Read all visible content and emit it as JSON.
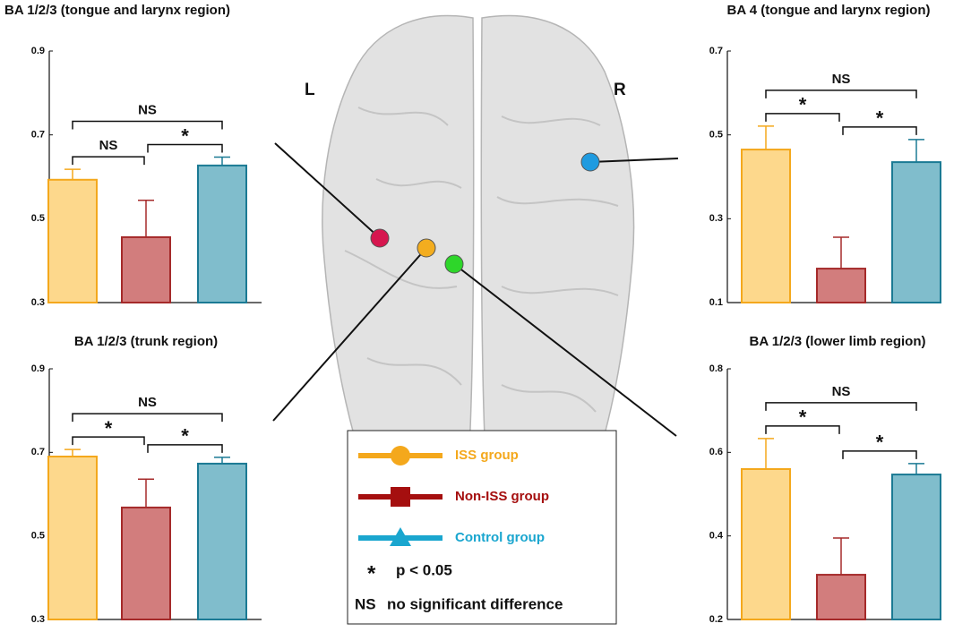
{
  "chart_data": [
    {
      "type": "bar",
      "title": "BA 1/2/3 (tongue and larynx region)",
      "categories": [
        null,
        null,
        null
      ],
      "values": [
        0.593,
        0.456,
        0.627
      ],
      "errors": [
        0.025,
        0.088,
        0.02
      ],
      "colors": [
        "#fdd88c",
        "#d27d7d",
        "#80bdcc"
      ],
      "edge_colors": [
        "#f4a81c",
        "#a52a2a",
        "#1b7a94"
      ],
      "ylim": [
        0.3,
        0.9
      ],
      "yticks": [
        0.3,
        0.5,
        0.7,
        0.9
      ],
      "comparisons": [
        {
          "pair": [
            0,
            1
          ],
          "label": "NS"
        },
        {
          "pair": [
            1,
            2
          ],
          "label": "*"
        },
        {
          "pair": [
            0,
            2
          ],
          "label": "NS"
        }
      ]
    },
    {
      "type": "bar",
      "title": "BA 4 (tongue and larynx region)",
      "categories": [
        null,
        null,
        null
      ],
      "values": [
        0.465,
        0.181,
        0.435
      ],
      "errors": [
        0.056,
        0.075,
        0.054
      ],
      "colors": [
        "#fdd88c",
        "#d27d7d",
        "#80bdcc"
      ],
      "edge_colors": [
        "#f4a81c",
        "#a52a2a",
        "#1b7a94"
      ],
      "ylim": [
        0.1,
        0.7
      ],
      "yticks": [
        0.1,
        0.3,
        0.5,
        0.7
      ],
      "comparisons": [
        {
          "pair": [
            0,
            1
          ],
          "label": "*"
        },
        {
          "pair": [
            1,
            2
          ],
          "label": "*"
        },
        {
          "pair": [
            0,
            2
          ],
          "label": "NS"
        }
      ]
    },
    {
      "type": "bar",
      "title": "BA 1/2/3 (trunk region)",
      "categories": [
        null,
        null,
        null
      ],
      "values": [
        0.69,
        0.568,
        0.673
      ],
      "errors": [
        0.017,
        0.068,
        0.015
      ],
      "colors": [
        "#fdd88c",
        "#d27d7d",
        "#80bdcc"
      ],
      "edge_colors": [
        "#f4a81c",
        "#a52a2a",
        "#1b7a94"
      ],
      "ylim": [
        0.3,
        0.9
      ],
      "yticks": [
        0.3,
        0.5,
        0.7,
        0.9
      ],
      "comparisons": [
        {
          "pair": [
            0,
            1
          ],
          "label": "*"
        },
        {
          "pair": [
            1,
            2
          ],
          "label": "*"
        },
        {
          "pair": [
            0,
            2
          ],
          "label": "NS"
        }
      ]
    },
    {
      "type": "bar",
      "title": "BA 1/2/3 (lower limb region)",
      "categories": [
        null,
        null,
        null
      ],
      "values": [
        0.56,
        0.307,
        0.547
      ],
      "errors": [
        0.073,
        0.088,
        0.026
      ],
      "colors": [
        "#fdd88c",
        "#d27d7d",
        "#80bdcc"
      ],
      "edge_colors": [
        "#f4a81c",
        "#a52a2a",
        "#1b7a94"
      ],
      "ylim": [
        0.2,
        0.8
      ],
      "yticks": [
        0.2,
        0.4,
        0.6,
        0.8
      ],
      "comparisons": [
        {
          "pair": [
            0,
            1
          ],
          "label": "*"
        },
        {
          "pair": [
            1,
            2
          ],
          "label": "*"
        },
        {
          "pair": [
            0,
            2
          ],
          "label": "NS"
        }
      ]
    }
  ],
  "brain": {
    "left": "L",
    "right": "R"
  },
  "legend": {
    "items": [
      {
        "name": "ISS group",
        "color": "#f4a81c",
        "marker": "circle"
      },
      {
        "name": "Non-ISS group",
        "color": "#a50f0f",
        "marker": "square"
      },
      {
        "name": "Control group",
        "color": "#1aa6cf",
        "marker": "triangle"
      }
    ],
    "notes": [
      {
        "symbol": "*",
        "text": "p < 0.05"
      },
      {
        "symbol": "NS",
        "text": "no significant difference"
      }
    ]
  }
}
